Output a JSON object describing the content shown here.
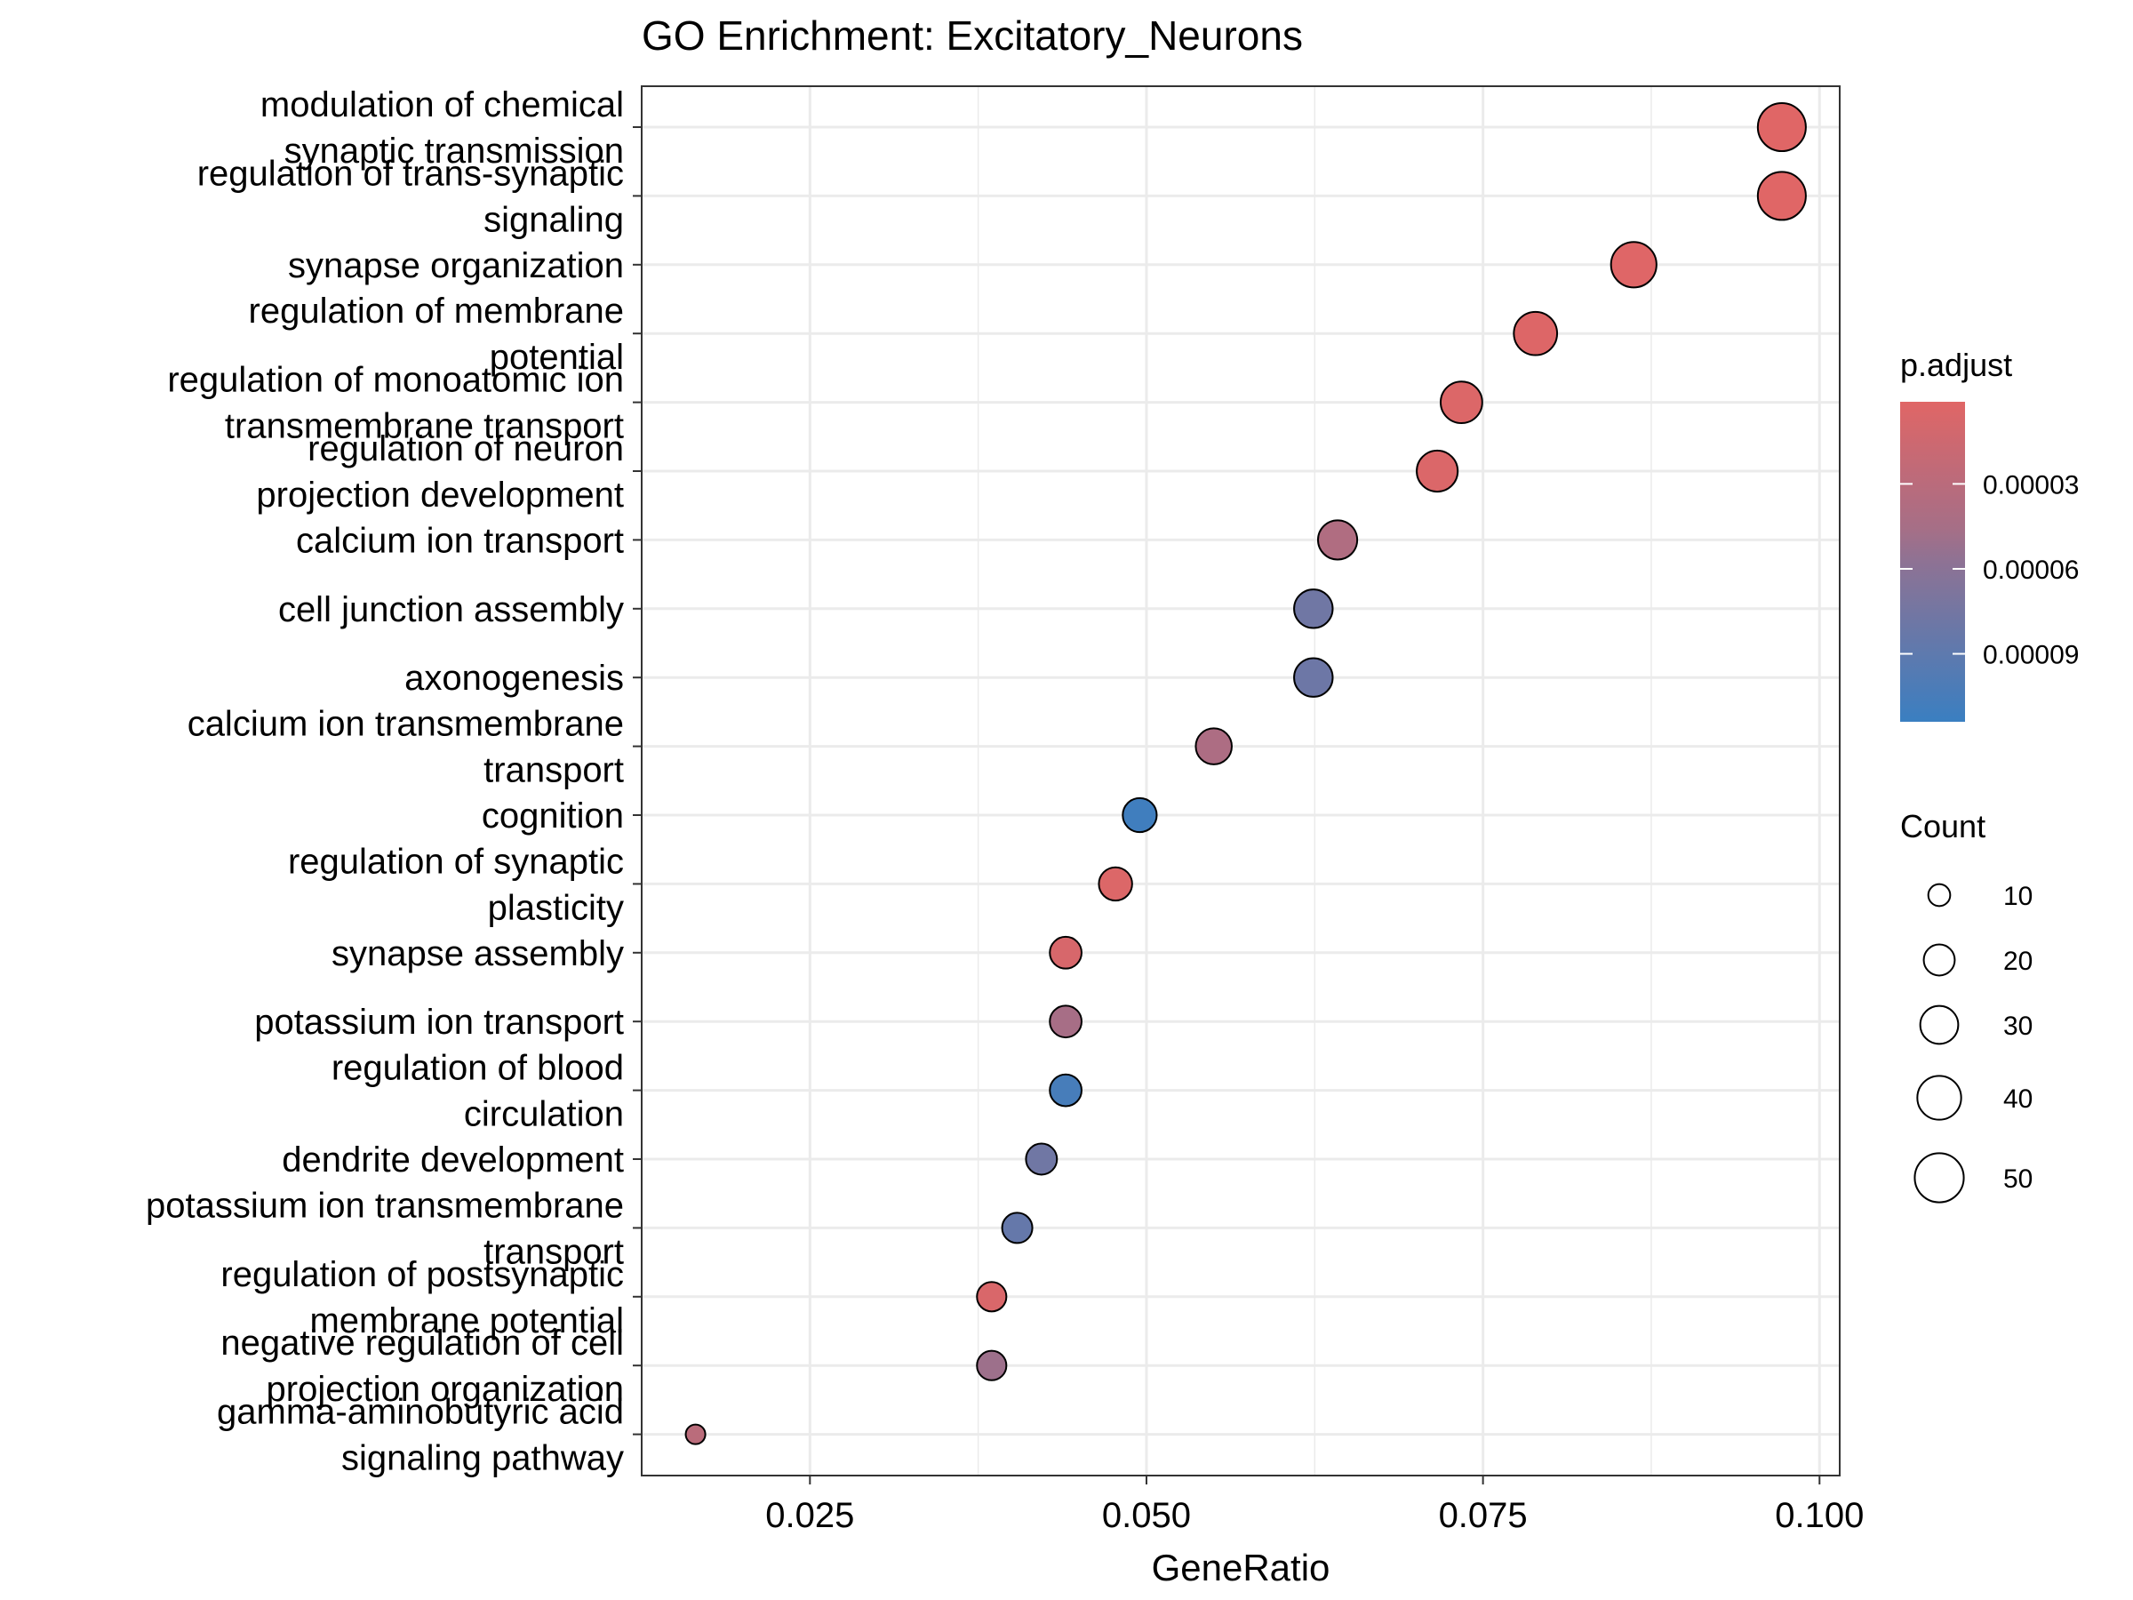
{
  "chart_data": {
    "type": "scatter",
    "title": "GO Enrichment: Excitatory_Neurons",
    "xlabel": "GeneRatio",
    "ylabel": "",
    "xlim": [
      0.0125,
      0.1015
    ],
    "x_ticks": [
      "0.025",
      "0.050",
      "0.075",
      "0.100"
    ],
    "x_tick_values": [
      0.025,
      0.05,
      0.075,
      0.1
    ],
    "grid": true,
    "points": [
      {
        "term": [
          "modulation of chemical",
          "synaptic transmission"
        ],
        "gene_ratio": 0.0972,
        "count": 48,
        "p_adjust": 1e-06
      },
      {
        "term": [
          "regulation of trans-synaptic",
          "signaling"
        ],
        "gene_ratio": 0.0972,
        "count": 48,
        "p_adjust": 1e-06
      },
      {
        "term": [
          "synapse organization"
        ],
        "gene_ratio": 0.0862,
        "count": 43,
        "p_adjust": 2e-06
      },
      {
        "term": [
          "regulation of membrane",
          "potential"
        ],
        "gene_ratio": 0.0789,
        "count": 39,
        "p_adjust": 3e-06
      },
      {
        "term": [
          "regulation of monoatomic ion",
          "transmembrane transport"
        ],
        "gene_ratio": 0.0734,
        "count": 36,
        "p_adjust": 4e-06
      },
      {
        "term": [
          "regulation of neuron",
          "projection development"
        ],
        "gene_ratio": 0.0716,
        "count": 35,
        "p_adjust": 5e-06
      },
      {
        "term": [
          "calcium ion transport"
        ],
        "gene_ratio": 0.0642,
        "count": 32,
        "p_adjust": 3.8e-05
      },
      {
        "term": [
          "cell junction assembly"
        ],
        "gene_ratio": 0.0624,
        "count": 31,
        "p_adjust": 7.8e-05
      },
      {
        "term": [
          "axonogenesis"
        ],
        "gene_ratio": 0.0624,
        "count": 31,
        "p_adjust": 8e-05
      },
      {
        "term": [
          "calcium ion transmembrane",
          "transport"
        ],
        "gene_ratio": 0.055,
        "count": 27,
        "p_adjust": 4e-05
      },
      {
        "term": [
          "cognition"
        ],
        "gene_ratio": 0.0495,
        "count": 24,
        "p_adjust": 0.00011
      },
      {
        "term": [
          "regulation of synaptic",
          "plasticity"
        ],
        "gene_ratio": 0.0477,
        "count": 23,
        "p_adjust": 4e-06
      },
      {
        "term": [
          "synapse assembly"
        ],
        "gene_ratio": 0.044,
        "count": 21,
        "p_adjust": 8e-06
      },
      {
        "term": [
          "potassium ion transport"
        ],
        "gene_ratio": 0.044,
        "count": 21,
        "p_adjust": 4.5e-05
      },
      {
        "term": [
          "regulation of blood",
          "circulation"
        ],
        "gene_ratio": 0.044,
        "count": 21,
        "p_adjust": 0.000105
      },
      {
        "term": [
          "dendrite development"
        ],
        "gene_ratio": 0.0422,
        "count": 20,
        "p_adjust": 7.8e-05
      },
      {
        "term": [
          "potassium ion transmembrane",
          "transport"
        ],
        "gene_ratio": 0.0404,
        "count": 19,
        "p_adjust": 8.5e-05
      },
      {
        "term": [
          "regulation of postsynaptic",
          "membrane potential"
        ],
        "gene_ratio": 0.0385,
        "count": 18,
        "p_adjust": 6e-06
      },
      {
        "term": [
          "negative regulation of cell",
          "projection organization"
        ],
        "gene_ratio": 0.0385,
        "count": 18,
        "p_adjust": 5.2e-05
      },
      {
        "term": [
          "gamma-aminobutyric acid",
          "signaling pathway"
        ],
        "gene_ratio": 0.0165,
        "count": 8,
        "p_adjust": 3e-05
      }
    ],
    "color_legend": {
      "title": "p.adjust",
      "labels": [
        "0.00003",
        "0.00006",
        "0.00009"
      ],
      "values": [
        3e-05,
        6e-05,
        9e-05
      ],
      "range": [
        1e-06,
        0.000114
      ],
      "low_color": "#e06666",
      "high_color": "#3a7fc1"
    },
    "size_legend": {
      "title": "Count",
      "labels": [
        "10",
        "20",
        "30",
        "40",
        "50"
      ],
      "values": [
        10,
        20,
        30,
        40,
        50
      ]
    },
    "colors": {
      "gridline": "#ebebeb",
      "panel_border": "#333333",
      "point_stroke": "#000000"
    }
  }
}
